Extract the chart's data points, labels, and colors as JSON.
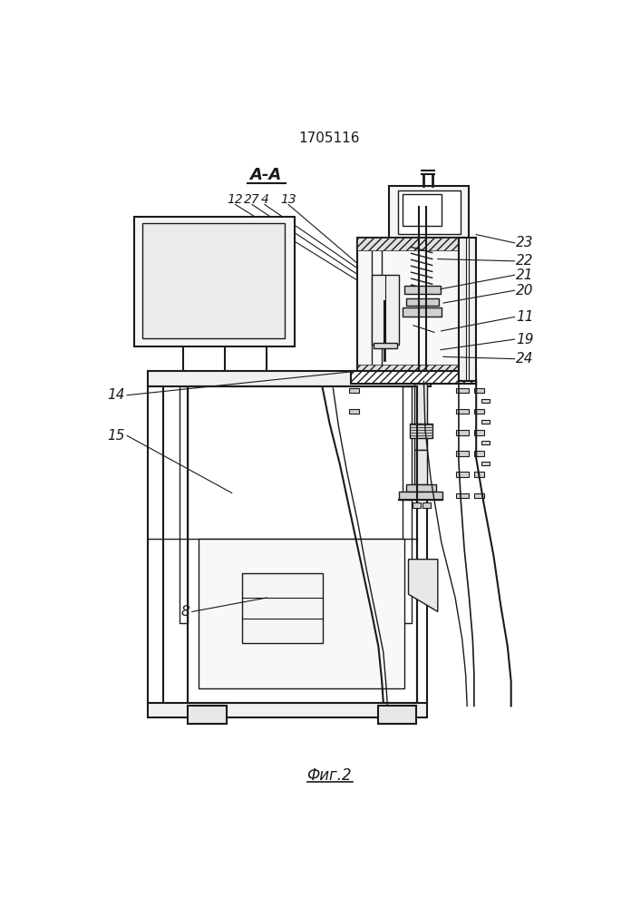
{
  "title": "1705116",
  "fig_label": "Фиг.2",
  "section_label": "А-А",
  "background_color": "#ffffff",
  "line_color": "#1a1a1a",
  "gray_fill": "#d8d8d8",
  "light_gray": "#eeeeee"
}
